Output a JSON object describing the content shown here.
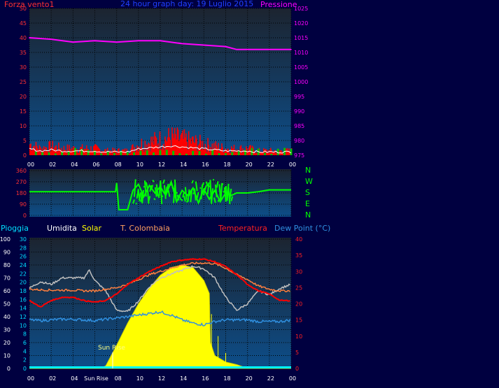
{
  "top_left_label": "Forza vento1",
  "top_title": "24 hour graph day: 19 Luglio 2015",
  "top_right_label": "Pressione",
  "dir_labels": [
    "N",
    "W",
    "S",
    "E",
    "N"
  ],
  "bottom_legend": {
    "pioggia": "Pioggia",
    "umidita": "Umidita",
    "solar": "Solar",
    "tcol": "T. Colombaia",
    "temp": "Temperatura",
    "dew": "Dew Point (°C)"
  },
  "sunrise_label": "Sun Rise",
  "colors": {
    "panel": "#0b2a4a",
    "wind": "#ff0000",
    "gust": "#00c000",
    "white": "#ffffff",
    "pressure": "#ff00ff",
    "dir": "#00ff00",
    "solar": "#ffff00",
    "humid": "#c0c0c0",
    "tcol": "#ff8040",
    "temp": "#ff0000",
    "dew": "#3090e0",
    "rain": "#00ffff"
  },
  "chart_data": [
    {
      "type": "bar",
      "title": "24 hour graph day: 19 Luglio 2015",
      "x_ticks": [
        "00",
        "02",
        "04",
        "06",
        "08",
        "10",
        "12",
        "14",
        "16",
        "18",
        "20",
        "22",
        "00"
      ],
      "y_left_ticks": [
        0,
        5,
        10,
        15,
        20,
        25,
        30,
        35,
        40,
        45,
        50
      ],
      "y_right_ticks": [
        975,
        980,
        985,
        990,
        995,
        1000,
        1005,
        1010,
        1015,
        1020,
        1025
      ],
      "ylim_left": [
        0,
        50
      ],
      "ylim_right": [
        975,
        1025
      ],
      "series": [
        {
          "name": "Forza vento1",
          "x": [
            0,
            1,
            2,
            3,
            4,
            5,
            6,
            7,
            8,
            9,
            10,
            11,
            12,
            13,
            14,
            15,
            16,
            17,
            18,
            19,
            20,
            21,
            22,
            23,
            24
          ],
          "values": [
            5,
            3,
            4,
            3,
            3,
            3,
            3,
            2,
            2,
            2,
            5,
            6,
            7,
            8,
            7,
            6,
            5,
            4,
            3,
            3,
            3,
            2,
            2,
            2,
            2
          ]
        },
        {
          "name": "Pressione",
          "x": [
            0,
            2,
            4,
            6,
            8,
            10,
            12,
            14,
            16,
            18,
            19,
            20,
            22,
            24
          ],
          "values": [
            1015,
            1014.5,
            1013.5,
            1014,
            1013.5,
            1014,
            1014,
            1013,
            1012.5,
            1012,
            1011,
            1011,
            1011,
            1011
          ]
        }
      ]
    },
    {
      "type": "line",
      "y_ticks": [
        0,
        90,
        180,
        270,
        360
      ],
      "ylim": [
        0,
        360
      ],
      "series": [
        {
          "x": [
            0,
            2,
            4,
            6,
            7.9,
            8,
            8.2,
            9,
            9.5,
            10,
            10.5,
            11,
            11.5,
            12,
            12.5,
            13,
            13.5,
            14,
            14.5,
            15,
            15.5,
            16,
            16.5,
            17,
            17.5,
            18,
            18.5,
            19,
            20,
            21,
            22,
            24
          ],
          "values": [
            190,
            190,
            190,
            190,
            190,
            260,
            45,
            45,
            200,
            250,
            150,
            240,
            180,
            230,
            160,
            270,
            110,
            200,
            160,
            220,
            100,
            210,
            130,
            200,
            110,
            180,
            160,
            180,
            180,
            190,
            205,
            205
          ]
        }
      ]
    },
    {
      "type": "line",
      "x_ticks": [
        "00",
        "02",
        "04",
        "Sun Rise",
        "08",
        "10",
        "12",
        "14",
        "16",
        "18",
        "20",
        "22",
        "00"
      ],
      "y_left_ticks": [
        0,
        10,
        20,
        30,
        40,
        50,
        60,
        70,
        80,
        90,
        100
      ],
      "y_rain_ticks": [
        0,
        2,
        4,
        6,
        8,
        10,
        12,
        14,
        16,
        18,
        20,
        22,
        24,
        26,
        28,
        30
      ],
      "y_right_ticks": [
        0,
        5,
        10,
        15,
        20,
        25,
        30,
        35,
        40
      ],
      "ylim_left": [
        0,
        100
      ],
      "ylim_right": [
        0,
        40
      ],
      "series": [
        {
          "name": "Umidita",
          "x": [
            0,
            1,
            2,
            3,
            4,
            5,
            5.5,
            6,
            7,
            8,
            9,
            10,
            11,
            12,
            13,
            14,
            15,
            16,
            17,
            18,
            19,
            20,
            21,
            22,
            23,
            24
          ],
          "values": [
            62,
            67,
            65,
            70,
            70,
            70,
            76,
            68,
            60,
            45,
            44,
            52,
            63,
            70,
            73,
            76,
            79,
            77,
            70,
            55,
            45,
            50,
            60,
            57,
            62,
            65
          ]
        },
        {
          "name": "T. Colombaia",
          "x": [
            0,
            1,
            2,
            3,
            4,
            5,
            6,
            7,
            8,
            9,
            10,
            11,
            12,
            13,
            14,
            15,
            16,
            17,
            18,
            19,
            20,
            21,
            22,
            23,
            24
          ],
          "values": [
            24.5,
            24.3,
            24.2,
            24.2,
            24.2,
            24,
            24,
            24.5,
            25,
            26,
            27.5,
            29,
            30,
            31,
            32,
            32.5,
            32.6,
            32.4,
            31,
            29,
            27.5,
            25.5,
            24.5,
            24,
            24
          ]
        },
        {
          "name": "Temperatura",
          "x": [
            0,
            1,
            2,
            3,
            4,
            5,
            6,
            7,
            8,
            9,
            10,
            11,
            12,
            13,
            14,
            15,
            16,
            17,
            18,
            19,
            20,
            21,
            22,
            23,
            24
          ],
          "values": [
            21,
            19,
            21,
            22,
            22,
            21,
            20.5,
            21,
            23,
            26,
            28,
            30,
            31.5,
            33,
            33.5,
            33.8,
            33.8,
            33,
            31.5,
            29,
            26,
            24,
            23,
            21,
            21
          ]
        },
        {
          "name": "Dew Point (°C)",
          "x": [
            0,
            1,
            2,
            3,
            4,
            5,
            6,
            7,
            8,
            9,
            10,
            11,
            12,
            13,
            14,
            15,
            16,
            17,
            18,
            19,
            20,
            21,
            22,
            23,
            24
          ],
          "values": [
            15,
            14.8,
            15,
            15.2,
            15.2,
            15,
            14.8,
            15.2,
            15.6,
            16,
            16.5,
            17,
            17.5,
            16.5,
            15,
            14,
            13.5,
            14.5,
            15,
            15,
            15,
            14.5,
            14.5,
            14.5,
            15
          ]
        },
        {
          "name": "Solar",
          "x": [
            0,
            6.5,
            7,
            8,
            9,
            10,
            11,
            12,
            13,
            14,
            15,
            16,
            16.5,
            16.6,
            17,
            18,
            19,
            20,
            24
          ],
          "values": [
            0,
            0,
            2,
            18,
            35,
            50,
            62,
            72,
            78,
            80,
            78,
            68,
            58,
            20,
            10,
            5,
            3,
            0,
            0
          ]
        },
        {
          "name": "Pioggia",
          "x": [
            0,
            24
          ],
          "values": [
            0,
            0
          ]
        }
      ]
    }
  ]
}
